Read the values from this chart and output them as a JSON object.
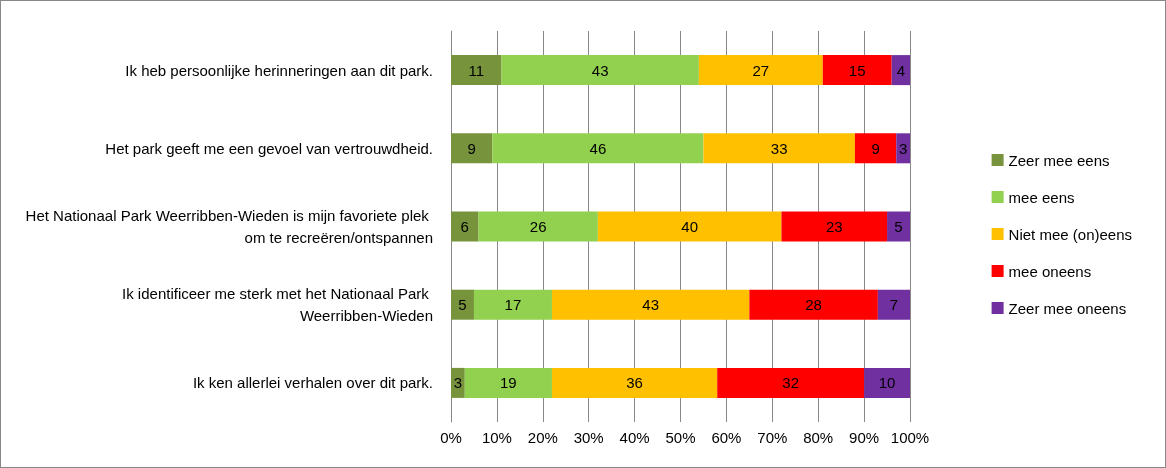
{
  "chart_data": {
    "type": "bar",
    "orientation": "horizontal",
    "stacked": true,
    "data_labels": true,
    "grid": "x",
    "legend": "right",
    "categories": [
      "Ik heb persoonlijke herinneringen aan dit park.",
      "Het park geeft me een gevoel van vertrouwdheid.",
      "Het Nationaal Park Weerribben-Wieden is mijn favoriete plek om te recreëren/ontspannen",
      "Ik identificeer me sterk met het Nationaal Park Weerribben-Wieden",
      "Ik ken allerlei verhalen over dit park."
    ],
    "series": [
      {
        "name": "Zeer mee eens",
        "color": "#77933c",
        "values": [
          11,
          9,
          6,
          5,
          3
        ]
      },
      {
        "name": "mee eens",
        "color": "#92d050",
        "values": [
          43,
          46,
          26,
          17,
          19
        ]
      },
      {
        "name": "Niet mee (on)eens",
        "color": "#ffc000",
        "values": [
          27,
          33,
          40,
          43,
          36
        ]
      },
      {
        "name": "mee oneens",
        "color": "#ff0000",
        "values": [
          15,
          9,
          23,
          28,
          32
        ]
      },
      {
        "name": "Zeer mee oneens",
        "color": "#7030a0",
        "values": [
          4,
          3,
          5,
          7,
          10
        ]
      }
    ],
    "xlim": [
      0,
      100
    ],
    "xticks": [
      {
        "value": 0,
        "label": "0%"
      },
      {
        "value": 10,
        "label": "10%"
      },
      {
        "value": 20,
        "label": "20%"
      },
      {
        "value": 30,
        "label": "30%"
      },
      {
        "value": 40,
        "label": "40%"
      },
      {
        "value": 50,
        "label": "50%"
      },
      {
        "value": 60,
        "label": "60%"
      },
      {
        "value": 70,
        "label": "70%"
      },
      {
        "value": 80,
        "label": "80%"
      },
      {
        "value": 90,
        "label": "90%"
      },
      {
        "value": 100,
        "label": "100%"
      }
    ]
  }
}
